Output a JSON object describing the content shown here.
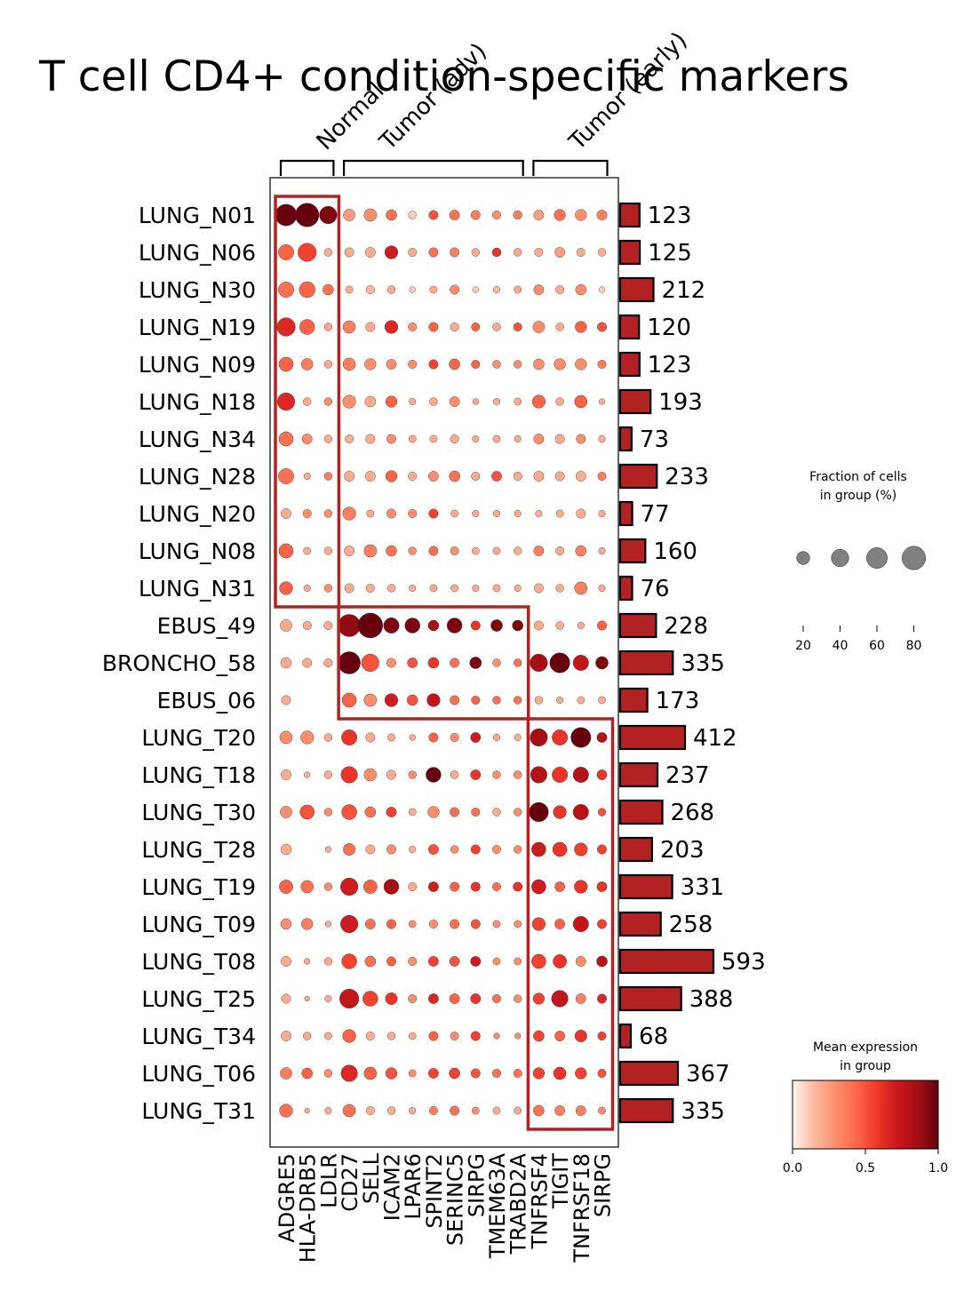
{
  "chart_data": {
    "type": "dotplot",
    "title": "T cell CD4+ condition-specific markers",
    "groups": [
      {
        "name": "Normal",
        "genes": [
          "ADGRE5",
          "HLA-DRB5",
          "LDLR"
        ]
      },
      {
        "name": "Tumor (adv)",
        "genes": [
          "CD27",
          "SELL",
          "ICAM2",
          "LPAR6",
          "SPINT2",
          "SERINC5",
          "SIRPG",
          "TMEM63A",
          "TRABD2A"
        ]
      },
      {
        "name": "Tumor (early)",
        "genes": [
          "TNFRSF4",
          "TIGIT",
          "TNFRSF18",
          "SIRPG"
        ]
      }
    ],
    "genes": [
      "ADGRE5",
      "HLA-DRB5",
      "LDLR",
      "CD27",
      "SELL",
      "ICAM2",
      "LPAR6",
      "SPINT2",
      "SERINC5",
      "SIRPG",
      "TMEM63A",
      "TRABD2A",
      "TNFRSF4",
      "TIGIT",
      "TNFRSF18",
      "SIRPG"
    ],
    "samples": [
      "LUNG_N01",
      "LUNG_N06",
      "LUNG_N30",
      "LUNG_N19",
      "LUNG_N09",
      "LUNG_N18",
      "LUNG_N34",
      "LUNG_N28",
      "LUNG_N20",
      "LUNG_N08",
      "LUNG_N31",
      "EBUS_49",
      "BRONCHO_58",
      "EBUS_06",
      "LUNG_T20",
      "LUNG_T18",
      "LUNG_T30",
      "LUNG_T28",
      "LUNG_T19",
      "LUNG_T09",
      "LUNG_T08",
      "LUNG_T25",
      "LUNG_T34",
      "LUNG_T06",
      "LUNG_T31"
    ],
    "cell_counts": [
      123,
      125,
      212,
      120,
      123,
      193,
      73,
      233,
      77,
      160,
      76,
      228,
      335,
      173,
      412,
      237,
      268,
      203,
      331,
      258,
      593,
      388,
      68,
      367,
      335
    ],
    "fraction_pct": [
      [
        65,
        80,
        40,
        15,
        18,
        12,
        5,
        8,
        10,
        8,
        6,
        7,
        10,
        14,
        14,
        10
      ],
      [
        30,
        45,
        5,
        8,
        10,
        20,
        6,
        8,
        8,
        5,
        7,
        5,
        6,
        10,
        6,
        5
      ],
      [
        30,
        32,
        12,
        4,
        6,
        5,
        2,
        4,
        8,
        2,
        3,
        4,
        10,
        6,
        12,
        2
      ],
      [
        45,
        28,
        5,
        18,
        8,
        20,
        6,
        8,
        6,
        6,
        5,
        6,
        15,
        5,
        14,
        8
      ],
      [
        25,
        15,
        5,
        18,
        14,
        10,
        6,
        8,
        12,
        6,
        5,
        5,
        12,
        14,
        14,
        6
      ],
      [
        40,
        5,
        5,
        20,
        12,
        14,
        3,
        5,
        10,
        2,
        3,
        4,
        20,
        5,
        18,
        2
      ],
      [
        25,
        10,
        5,
        6,
        8,
        8,
        4,
        4,
        6,
        3,
        4,
        3,
        10,
        8,
        8,
        3
      ],
      [
        30,
        3,
        5,
        10,
        10,
        14,
        6,
        10,
        12,
        6,
        10,
        6,
        10,
        8,
        10,
        6
      ],
      [
        10,
        6,
        5,
        20,
        4,
        8,
        6,
        8,
        4,
        3,
        3,
        3,
        3,
        4,
        8,
        3
      ],
      [
        25,
        4,
        5,
        10,
        18,
        12,
        5,
        8,
        6,
        4,
        4,
        5,
        10,
        6,
        12,
        3
      ],
      [
        20,
        3,
        5,
        8,
        6,
        5,
        3,
        4,
        4,
        3,
        4,
        3,
        8,
        5,
        18,
        3
      ],
      [
        15,
        6,
        6,
        70,
        90,
        30,
        28,
        12,
        28,
        8,
        15,
        12,
        8,
        5,
        3,
        8
      ],
      [
        12,
        8,
        6,
        70,
        40,
        8,
        10,
        12,
        8,
        15,
        5,
        5,
        40,
        55,
        30,
        18
      ],
      [
        8,
        0,
        0,
        25,
        18,
        20,
        12,
        20,
        8,
        6,
        5,
        5,
        5,
        3,
        4,
        4
      ],
      [
        18,
        20,
        5,
        30,
        8,
        4,
        2,
        8,
        6,
        10,
        3,
        3,
        40,
        30,
        55,
        10
      ],
      [
        10,
        2,
        5,
        35,
        18,
        8,
        5,
        28,
        5,
        10,
        5,
        5,
        35,
        30,
        30,
        10
      ],
      [
        15,
        25,
        5,
        28,
        12,
        10,
        4,
        14,
        8,
        6,
        5,
        5,
        50,
        20,
        30,
        5
      ],
      [
        12,
        0,
        2,
        16,
        8,
        8,
        3,
        10,
        5,
        8,
        6,
        5,
        25,
        25,
        20,
        8
      ],
      [
        22,
        18,
        5,
        40,
        22,
        28,
        6,
        10,
        8,
        8,
        6,
        8,
        25,
        10,
        20,
        10
      ],
      [
        12,
        14,
        2,
        40,
        10,
        8,
        4,
        6,
        8,
        8,
        4,
        4,
        20,
        10,
        30,
        8
      ],
      [
        10,
        2,
        5,
        28,
        12,
        8,
        6,
        10,
        10,
        10,
        4,
        4,
        25,
        22,
        10,
        12
      ],
      [
        8,
        1,
        3,
        50,
        28,
        16,
        6,
        10,
        10,
        10,
        6,
        5,
        14,
        35,
        10,
        8
      ],
      [
        10,
        5,
        4,
        20,
        6,
        5,
        4,
        8,
        6,
        8,
        2,
        2,
        12,
        10,
        16,
        6
      ],
      [
        15,
        12,
        5,
        35,
        18,
        14,
        4,
        10,
        12,
        8,
        6,
        6,
        14,
        18,
        14,
        6
      ],
      [
        20,
        1,
        3,
        18,
        6,
        5,
        3,
        6,
        8,
        4,
        4,
        4,
        12,
        10,
        10,
        4
      ]
    ],
    "mean_expression": [
      [
        1.0,
        1.0,
        0.95,
        0.25,
        0.3,
        0.4,
        0.1,
        0.5,
        0.4,
        0.35,
        0.3,
        0.35,
        0.25,
        0.4,
        0.3,
        0.35
      ],
      [
        0.45,
        0.55,
        0.2,
        0.2,
        0.2,
        0.7,
        0.2,
        0.4,
        0.35,
        0.2,
        0.6,
        0.2,
        0.2,
        0.25,
        0.2,
        0.2
      ],
      [
        0.4,
        0.45,
        0.4,
        0.2,
        0.15,
        0.2,
        0.1,
        0.2,
        0.3,
        0.1,
        0.15,
        0.2,
        0.3,
        0.2,
        0.3,
        0.1
      ],
      [
        0.65,
        0.45,
        0.2,
        0.35,
        0.2,
        0.65,
        0.3,
        0.45,
        0.2,
        0.45,
        0.2,
        0.5,
        0.3,
        0.2,
        0.45,
        0.5
      ],
      [
        0.45,
        0.35,
        0.2,
        0.35,
        0.3,
        0.3,
        0.3,
        0.55,
        0.45,
        0.45,
        0.3,
        0.3,
        0.3,
        0.3,
        0.3,
        0.35
      ],
      [
        0.65,
        0.2,
        0.3,
        0.3,
        0.2,
        0.45,
        0.2,
        0.2,
        0.3,
        0.2,
        0.2,
        0.2,
        0.45,
        0.2,
        0.45,
        0.2
      ],
      [
        0.4,
        0.3,
        0.2,
        0.2,
        0.2,
        0.3,
        0.2,
        0.2,
        0.2,
        0.2,
        0.2,
        0.2,
        0.3,
        0.2,
        0.3,
        0.2
      ],
      [
        0.4,
        0.2,
        0.35,
        0.2,
        0.2,
        0.45,
        0.2,
        0.3,
        0.4,
        0.2,
        0.5,
        0.2,
        0.2,
        0.2,
        0.2,
        0.35
      ],
      [
        0.2,
        0.3,
        0.3,
        0.35,
        0.2,
        0.3,
        0.3,
        0.55,
        0.2,
        0.2,
        0.2,
        0.2,
        0.2,
        0.2,
        0.2,
        0.2
      ],
      [
        0.45,
        0.2,
        0.2,
        0.2,
        0.35,
        0.4,
        0.3,
        0.4,
        0.3,
        0.2,
        0.2,
        0.2,
        0.35,
        0.2,
        0.35,
        0.2
      ],
      [
        0.45,
        0.2,
        0.3,
        0.2,
        0.2,
        0.2,
        0.2,
        0.2,
        0.2,
        0.2,
        0.2,
        0.2,
        0.2,
        0.2,
        0.35,
        0.2
      ],
      [
        0.2,
        0.2,
        0.2,
        0.9,
        1.0,
        0.95,
        0.95,
        0.85,
        0.95,
        0.6,
        0.95,
        0.95,
        0.2,
        0.2,
        0.2,
        0.45
      ],
      [
        0.2,
        0.2,
        0.2,
        1.0,
        0.5,
        0.3,
        0.5,
        0.6,
        0.4,
        0.95,
        0.3,
        0.4,
        0.85,
        1.0,
        0.75,
        0.95
      ],
      [
        0.2,
        0.0,
        0.0,
        0.45,
        0.3,
        0.7,
        0.5,
        0.75,
        0.4,
        0.45,
        0.4,
        0.4,
        0.2,
        0.2,
        0.2,
        0.2
      ],
      [
        0.3,
        0.3,
        0.2,
        0.6,
        0.2,
        0.2,
        0.2,
        0.45,
        0.3,
        0.7,
        0.2,
        0.2,
        0.85,
        0.6,
        1.0,
        0.8
      ],
      [
        0.2,
        0.2,
        0.2,
        0.6,
        0.3,
        0.2,
        0.3,
        1.0,
        0.2,
        0.6,
        0.3,
        0.3,
        0.8,
        0.6,
        0.8,
        0.6
      ],
      [
        0.3,
        0.5,
        0.3,
        0.5,
        0.4,
        0.55,
        0.2,
        0.3,
        0.4,
        0.4,
        0.2,
        0.3,
        1.0,
        0.6,
        0.8,
        0.5
      ],
      [
        0.2,
        0.0,
        0.2,
        0.4,
        0.2,
        0.3,
        0.2,
        0.5,
        0.3,
        0.55,
        0.3,
        0.3,
        0.7,
        0.6,
        0.55,
        0.55
      ],
      [
        0.45,
        0.4,
        0.3,
        0.7,
        0.45,
        0.85,
        0.2,
        0.7,
        0.45,
        0.6,
        0.4,
        0.6,
        0.7,
        0.45,
        0.6,
        0.6
      ],
      [
        0.3,
        0.35,
        0.2,
        0.7,
        0.4,
        0.45,
        0.3,
        0.3,
        0.4,
        0.5,
        0.3,
        0.3,
        0.55,
        0.45,
        0.75,
        0.55
      ],
      [
        0.2,
        0.2,
        0.2,
        0.55,
        0.4,
        0.45,
        0.3,
        0.55,
        0.5,
        0.7,
        0.3,
        0.3,
        0.55,
        0.6,
        0.3,
        0.8
      ],
      [
        0.2,
        0.2,
        0.2,
        0.75,
        0.55,
        0.6,
        0.3,
        0.65,
        0.45,
        0.6,
        0.4,
        0.3,
        0.55,
        0.75,
        0.35,
        0.65
      ],
      [
        0.2,
        0.2,
        0.2,
        0.45,
        0.2,
        0.2,
        0.2,
        0.45,
        0.3,
        0.55,
        0.3,
        0.3,
        0.55,
        0.45,
        0.6,
        0.55
      ],
      [
        0.35,
        0.45,
        0.3,
        0.65,
        0.45,
        0.5,
        0.3,
        0.55,
        0.55,
        0.5,
        0.4,
        0.4,
        0.55,
        0.6,
        0.55,
        0.5
      ],
      [
        0.4,
        0.2,
        0.2,
        0.4,
        0.2,
        0.2,
        0.2,
        0.35,
        0.4,
        0.3,
        0.2,
        0.2,
        0.4,
        0.35,
        0.35,
        0.3
      ]
    ],
    "highlight_boxes": [
      {
        "group": "Normal",
        "samples": [
          "LUNG_N01",
          "LUNG_N31"
        ]
      },
      {
        "group": "Tumor (adv)",
        "samples": [
          "EBUS_49",
          "EBUS_06"
        ]
      },
      {
        "group": "Tumor (early)",
        "samples": [
          "LUNG_T20",
          "LUNG_T31"
        ]
      }
    ],
    "size_legend": {
      "title_line1": "Fraction of cells",
      "title_line2": "in group (%)",
      "ticks": [
        20,
        40,
        60,
        80
      ]
    },
    "color_legend": {
      "title_line1": "Mean expression",
      "title_line2": "in group",
      "ticks": [
        "0.0",
        "0.5",
        "1.0"
      ],
      "colormap": [
        "#fff5f0",
        "#fcbba1",
        "#fc9272",
        "#fb6a4a",
        "#ef3b2c",
        "#cb181d",
        "#a50f15",
        "#67000d"
      ]
    },
    "bar_color": "#b22222",
    "box_color": "#b22222"
  }
}
